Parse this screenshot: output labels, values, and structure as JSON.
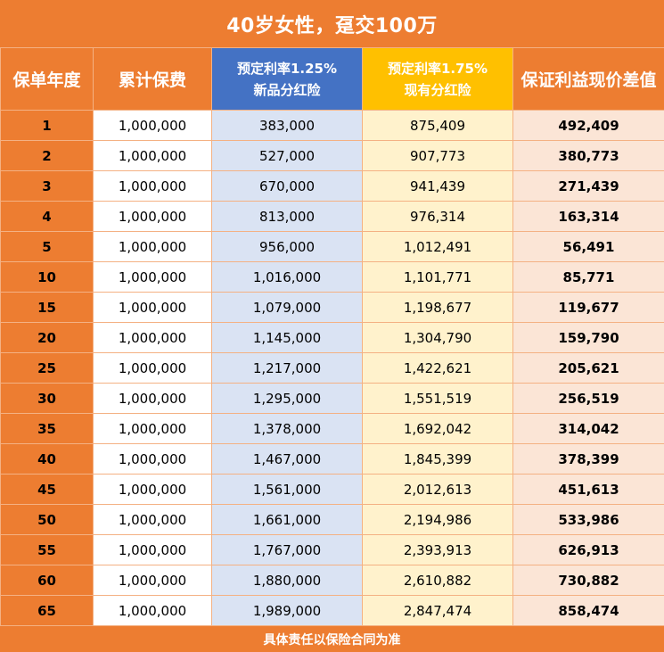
{
  "title": "40岁女性，趸交100万",
  "headers": {
    "year": "保单年度",
    "premium": "累计保费",
    "new_line1": "预定利率1.25%",
    "new_line2": "新品分红险",
    "old_line1": "预定利率1.75%",
    "old_line2": "现有分红险",
    "diff": "保证利益现价差值"
  },
  "rows": [
    {
      "year": "1",
      "premium": "1,000,000",
      "new": "383,000",
      "old": "875,409",
      "diff": "492,409"
    },
    {
      "year": "2",
      "premium": "1,000,000",
      "new": "527,000",
      "old": "907,773",
      "diff": "380,773"
    },
    {
      "year": "3",
      "premium": "1,000,000",
      "new": "670,000",
      "old": "941,439",
      "diff": "271,439"
    },
    {
      "year": "4",
      "premium": "1,000,000",
      "new": "813,000",
      "old": "976,314",
      "diff": "163,314"
    },
    {
      "year": "5",
      "premium": "1,000,000",
      "new": "956,000",
      "old": "1,012,491",
      "diff": "56,491"
    },
    {
      "year": "10",
      "premium": "1,000,000",
      "new": "1,016,000",
      "old": "1,101,771",
      "diff": "85,771"
    },
    {
      "year": "15",
      "premium": "1,000,000",
      "new": "1,079,000",
      "old": "1,198,677",
      "diff": "119,677"
    },
    {
      "year": "20",
      "premium": "1,000,000",
      "new": "1,145,000",
      "old": "1,304,790",
      "diff": "159,790"
    },
    {
      "year": "25",
      "premium": "1,000,000",
      "new": "1,217,000",
      "old": "1,422,621",
      "diff": "205,621"
    },
    {
      "year": "30",
      "premium": "1,000,000",
      "new": "1,295,000",
      "old": "1,551,519",
      "diff": "256,519"
    },
    {
      "year": "35",
      "premium": "1,000,000",
      "new": "1,378,000",
      "old": "1,692,042",
      "diff": "314,042"
    },
    {
      "year": "40",
      "premium": "1,000,000",
      "new": "1,467,000",
      "old": "1,845,399",
      "diff": "378,399"
    },
    {
      "year": "45",
      "premium": "1,000,000",
      "new": "1,561,000",
      "old": "2,012,613",
      "diff": "451,613"
    },
    {
      "year": "50",
      "premium": "1,000,000",
      "new": "1,661,000",
      "old": "2,194,986",
      "diff": "533,986"
    },
    {
      "year": "55",
      "premium": "1,000,000",
      "new": "1,767,000",
      "old": "2,393,913",
      "diff": "626,913"
    },
    {
      "year": "60",
      "premium": "1,000,000",
      "new": "1,880,000",
      "old": "2,610,882",
      "diff": "730,882"
    },
    {
      "year": "65",
      "premium": "1,000,000",
      "new": "1,989,000",
      "old": "2,847,474",
      "diff": "858,474"
    }
  ],
  "footer": "具体责任以保险合同为准",
  "colors": {
    "orange": "#ED7D31",
    "blue_header": "#4472C4",
    "gold_header": "#FFC000",
    "blue_cell": "#DAE3F3",
    "yellow_cell": "#FFF2CC",
    "pink_cell": "#FBE5D6",
    "diff_text": "#FF0000"
  }
}
